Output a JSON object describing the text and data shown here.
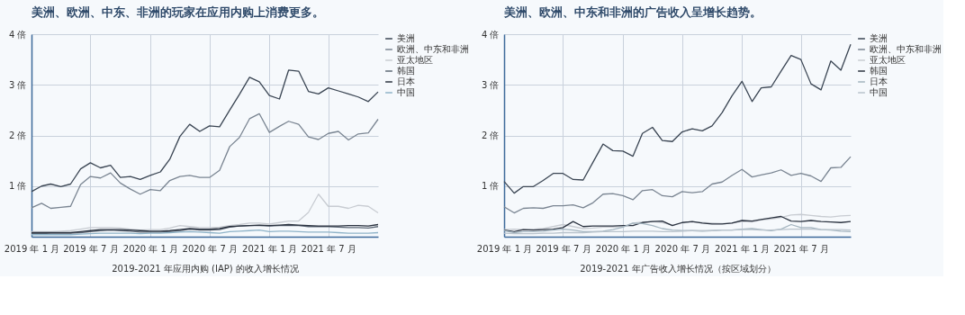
{
  "chart_data": [
    {
      "type": "line",
      "title": "美洲、欧洲、中东、非洲的玩家在应用内购上消费更多。",
      "xlabel": "2019-2021 年应用内购 (IAP) 的收入增长情况",
      "legend": "right",
      "grid": true,
      "x": [
        "2019-01",
        "2019-02",
        "2019-03",
        "2019-04",
        "2019-05",
        "2019-06",
        "2019-07",
        "2019-08",
        "2019-09",
        "2019-10",
        "2019-11",
        "2019-12",
        "2020-01",
        "2020-02",
        "2020-03",
        "2020-04",
        "2020-05",
        "2020-06",
        "2020-07",
        "2020-08",
        "2020-09",
        "2020-10",
        "2020-11",
        "2020-12",
        "2021-01",
        "2021-02",
        "2021-03",
        "2021-04",
        "2021-05",
        "2021-06",
        "2021-07",
        "2021-08",
        "2021-09",
        "2021-10",
        "2021-11",
        "2021-12"
      ],
      "xlim": [
        "2019-01",
        "2021-12"
      ],
      "xticks": [
        {
          "value": "2019-01",
          "label": "2019 年 1 月"
        },
        {
          "value": "2019-07",
          "label": "2019 年 7 月"
        },
        {
          "value": "2020-01",
          "label": "2020 年 1 月"
        },
        {
          "value": "2020-07",
          "label": "2020 年 7 月"
        },
        {
          "value": "2021-01",
          "label": "2021 年 1 月"
        },
        {
          "value": "2021-07",
          "label": "2021 年 7 月"
        }
      ],
      "ylim": [
        0,
        4
      ],
      "yticks": [
        {
          "value": 1,
          "label": "1 倍"
        },
        {
          "value": 2,
          "label": "2 倍"
        },
        {
          "value": 3,
          "label": "3 倍"
        },
        {
          "value": 4,
          "label": "4 倍"
        }
      ],
      "series": [
        {
          "name": "美洲",
          "color": "#3a4553",
          "values": [
            0.89,
            1.0,
            1.04,
            0.99,
            1.04,
            1.34,
            1.46,
            1.36,
            1.41,
            1.17,
            1.19,
            1.13,
            1.21,
            1.28,
            1.53,
            1.98,
            2.22,
            2.08,
            2.19,
            2.17,
            2.5,
            2.81,
            3.15,
            3.06,
            2.79,
            2.72,
            3.29,
            3.27,
            2.87,
            2.82,
            2.94,
            2.88,
            2.82,
            2.76,
            2.67,
            2.86
          ]
        },
        {
          "name": "欧洲、中东和非洲",
          "color": "#7a8592",
          "values": [
            0.57,
            0.66,
            0.56,
            0.58,
            0.6,
            1.03,
            1.19,
            1.16,
            1.26,
            1.06,
            0.94,
            0.84,
            0.93,
            0.91,
            1.11,
            1.19,
            1.21,
            1.17,
            1.17,
            1.31,
            1.78,
            1.96,
            2.33,
            2.43,
            2.06,
            2.18,
            2.28,
            2.22,
            1.97,
            1.92,
            2.04,
            2.08,
            1.91,
            2.03,
            2.05,
            2.32
          ]
        },
        {
          "name": "亚太地区",
          "color": "#c8ccd2",
          "values": [
            0.1,
            0.1,
            0.1,
            0.11,
            0.12,
            0.15,
            0.18,
            0.18,
            0.18,
            0.17,
            0.15,
            0.13,
            0.14,
            0.14,
            0.17,
            0.22,
            0.2,
            0.18,
            0.18,
            0.19,
            0.22,
            0.24,
            0.27,
            0.27,
            0.25,
            0.28,
            0.31,
            0.31,
            0.48,
            0.84,
            0.6,
            0.6,
            0.56,
            0.62,
            0.6,
            0.47
          ]
        },
        {
          "name": "韩国",
          "color": "#5d6876",
          "values": [
            0.06,
            0.06,
            0.07,
            0.07,
            0.07,
            0.08,
            0.1,
            0.12,
            0.13,
            0.12,
            0.11,
            0.09,
            0.09,
            0.09,
            0.1,
            0.12,
            0.15,
            0.13,
            0.13,
            0.14,
            0.19,
            0.21,
            0.22,
            0.22,
            0.21,
            0.22,
            0.22,
            0.22,
            0.2,
            0.2,
            0.2,
            0.19,
            0.18,
            0.18,
            0.17,
            0.2
          ]
        },
        {
          "name": "日本",
          "color": "#2b3340",
          "values": [
            0.08,
            0.08,
            0.08,
            0.08,
            0.08,
            0.1,
            0.12,
            0.14,
            0.14,
            0.14,
            0.13,
            0.12,
            0.11,
            0.11,
            0.12,
            0.14,
            0.16,
            0.15,
            0.15,
            0.16,
            0.2,
            0.21,
            0.22,
            0.23,
            0.22,
            0.23,
            0.24,
            0.23,
            0.22,
            0.21,
            0.21,
            0.21,
            0.22,
            0.22,
            0.21,
            0.24
          ]
        },
        {
          "name": "中国",
          "color": "#8fb3c8",
          "values": [
            0.04,
            0.04,
            0.04,
            0.04,
            0.04,
            0.05,
            0.06,
            0.07,
            0.07,
            0.07,
            0.07,
            0.06,
            0.07,
            0.07,
            0.08,
            0.09,
            0.1,
            0.09,
            0.08,
            0.07,
            0.1,
            0.11,
            0.12,
            0.13,
            0.1,
            0.11,
            0.11,
            0.1,
            0.09,
            0.09,
            0.09,
            0.08,
            0.07,
            0.07,
            0.07,
            0.08
          ]
        }
      ]
    },
    {
      "type": "line",
      "title": "美洲、欧洲、中东和非洲的广告收入呈增长趋势。",
      "xlabel": "2019-2021 年广告收入增长情况（按区域划分）",
      "legend": "right",
      "grid": true,
      "x": [
        "2019-01",
        "2019-02",
        "2019-03",
        "2019-04",
        "2019-05",
        "2019-06",
        "2019-07",
        "2019-08",
        "2019-09",
        "2019-10",
        "2019-11",
        "2019-12",
        "2020-01",
        "2020-02",
        "2020-03",
        "2020-04",
        "2020-05",
        "2020-06",
        "2020-07",
        "2020-08",
        "2020-09",
        "2020-10",
        "2020-11",
        "2020-12",
        "2021-01",
        "2021-02",
        "2021-03",
        "2021-04",
        "2021-05",
        "2021-06",
        "2021-07",
        "2021-08",
        "2021-09",
        "2021-10",
        "2021-11",
        "2021-12"
      ],
      "xlim": [
        "2019-01",
        "2021-12"
      ],
      "xticks": [
        {
          "value": "2019-01",
          "label": "2019 年 1 月"
        },
        {
          "value": "2019-07",
          "label": "2019 年 7 月"
        },
        {
          "value": "2020-01",
          "label": "2020 年 1 月"
        },
        {
          "value": "2020-07",
          "label": "2020 年 7 月"
        },
        {
          "value": "2021-01",
          "label": "2021 年 1 月"
        },
        {
          "value": "2021-07",
          "label": "2021 年 7 月"
        }
      ],
      "ylim": [
        0,
        4
      ],
      "yticks": [
        {
          "value": 1,
          "label": "1 倍"
        },
        {
          "value": 2,
          "label": "2 倍"
        },
        {
          "value": 3,
          "label": "3 倍"
        },
        {
          "value": 4,
          "label": "4 倍"
        }
      ],
      "series": [
        {
          "name": "美洲",
          "color": "#3a4553",
          "values": [
            1.09,
            0.86,
            0.99,
            0.99,
            1.11,
            1.25,
            1.25,
            1.13,
            1.12,
            1.47,
            1.83,
            1.7,
            1.69,
            1.59,
            2.04,
            2.16,
            1.9,
            1.88,
            2.07,
            2.13,
            2.09,
            2.19,
            2.45,
            2.78,
            3.07,
            2.67,
            2.94,
            2.96,
            3.27,
            3.58,
            3.5,
            3.02,
            2.9,
            3.47,
            3.29,
            3.8
          ]
        },
        {
          "name": "欧洲、中东和非洲",
          "color": "#7a8592",
          "values": [
            0.59,
            0.47,
            0.56,
            0.57,
            0.56,
            0.61,
            0.61,
            0.63,
            0.57,
            0.67,
            0.84,
            0.85,
            0.81,
            0.73,
            0.91,
            0.93,
            0.81,
            0.79,
            0.89,
            0.87,
            0.89,
            1.04,
            1.08,
            1.21,
            1.33,
            1.18,
            1.22,
            1.26,
            1.32,
            1.21,
            1.25,
            1.2,
            1.09,
            1.36,
            1.37,
            1.58
          ]
        },
        {
          "name": "亚太地区",
          "color": "#c8ccd2",
          "values": [
            0.14,
            0.15,
            0.14,
            0.15,
            0.16,
            0.2,
            0.24,
            0.2,
            0.16,
            0.17,
            0.19,
            0.19,
            0.2,
            0.27,
            0.29,
            0.3,
            0.28,
            0.23,
            0.27,
            0.29,
            0.28,
            0.27,
            0.26,
            0.27,
            0.3,
            0.29,
            0.33,
            0.35,
            0.38,
            0.43,
            0.44,
            0.42,
            0.4,
            0.39,
            0.41,
            0.42
          ]
        },
        {
          "name": "韩国",
          "color": "#2b3340",
          "values": [
            0.13,
            0.1,
            0.14,
            0.13,
            0.14,
            0.15,
            0.18,
            0.3,
            0.2,
            0.21,
            0.21,
            0.21,
            0.22,
            0.22,
            0.28,
            0.3,
            0.31,
            0.22,
            0.28,
            0.3,
            0.27,
            0.25,
            0.25,
            0.27,
            0.32,
            0.31,
            0.34,
            0.37,
            0.4,
            0.31,
            0.3,
            0.32,
            0.3,
            0.29,
            0.28,
            0.3
          ]
        },
        {
          "name": "日本",
          "color": "#a3b4bf",
          "values": [
            0.12,
            0.08,
            0.1,
            0.1,
            0.11,
            0.13,
            0.15,
            0.13,
            0.1,
            0.1,
            0.11,
            0.14,
            0.19,
            0.27,
            0.26,
            0.22,
            0.16,
            0.13,
            0.12,
            0.12,
            0.11,
            0.12,
            0.13,
            0.13,
            0.15,
            0.16,
            0.14,
            0.12,
            0.15,
            0.24,
            0.18,
            0.18,
            0.14,
            0.13,
            0.11,
            0.1
          ]
        },
        {
          "name": "中国",
          "color": "#b9c3cc",
          "values": [
            0.07,
            0.06,
            0.06,
            0.06,
            0.07,
            0.07,
            0.08,
            0.08,
            0.08,
            0.09,
            0.1,
            0.1,
            0.1,
            0.11,
            0.11,
            0.11,
            0.1,
            0.1,
            0.11,
            0.12,
            0.12,
            0.12,
            0.13,
            0.13,
            0.14,
            0.14,
            0.13,
            0.13,
            0.14,
            0.15,
            0.15,
            0.15,
            0.14,
            0.14,
            0.14,
            0.13
          ]
        }
      ]
    }
  ]
}
